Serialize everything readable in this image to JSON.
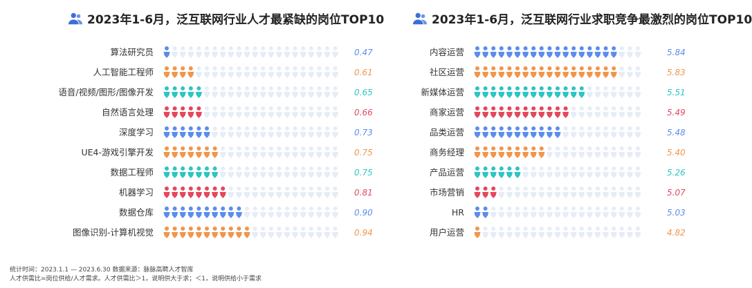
{
  "colors": {
    "blue": "#5b8def",
    "orange": "#f0964c",
    "teal": "#2ec4c4",
    "red": "#e5475d",
    "gray": "#e6edf7"
  },
  "footnote": {
    "line1": "统计时间：2023.1.1 — 2023.6.30  数据来源：脉脉高聘人才智库",
    "line2": "人才供需比=岗位供给/人才需求。人才供需比＞1，说明供大于求；＜1，说明供给小于需求"
  },
  "chart_data": [
    {
      "type": "bar",
      "title": "2023年1-6月，泛互联网行业人才最紧缺的岗位TOP10",
      "categories": [
        "算法研究员",
        "人工智能工程师",
        "语音/视频/图形/图像开发",
        "自然语言处理",
        "深度学习",
        "UE4-游戏引擎开发",
        "数据工程师",
        "机器学习",
        "数据仓库",
        "图像识别-计算机视觉"
      ],
      "values": [
        0.47,
        0.61,
        0.65,
        0.66,
        0.73,
        0.75,
        0.75,
        0.81,
        0.9,
        0.94
      ],
      "labels": [
        "0.47",
        "0.61",
        "0.65",
        "0.66",
        "0.73",
        "0.75",
        "0.75",
        "0.81",
        "0.90",
        "0.94"
      ],
      "icon_counts": [
        1,
        4,
        5,
        5,
        6,
        7,
        7,
        8,
        10,
        11
      ],
      "icons_total": 22,
      "bar_colors": [
        "blue",
        "orange",
        "teal",
        "red",
        "blue",
        "orange",
        "teal",
        "red",
        "blue",
        "orange"
      ]
    },
    {
      "type": "bar",
      "title": "2023年1-6月，泛互联网行业求职竞争最激烈的岗位TOP10",
      "categories": [
        "内容运营",
        "社区运营",
        "新媒体运营",
        "商家运营",
        "品类运营",
        "商务经理",
        "产品运营",
        "市场营销",
        "HR",
        "用户运营"
      ],
      "values": [
        5.84,
        5.83,
        5.51,
        5.49,
        5.48,
        5.4,
        5.26,
        5.07,
        5.03,
        4.82
      ],
      "labels": [
        "5.84",
        "5.83",
        "5.51",
        "5.49",
        "5.48",
        "5.40",
        "5.26",
        "5.07",
        "5.03",
        "4.82"
      ],
      "icon_counts": [
        18,
        18,
        14,
        12,
        11,
        9,
        6,
        3,
        2,
        1
      ],
      "icons_total": 21,
      "bar_colors": [
        "blue",
        "orange",
        "teal",
        "red",
        "blue",
        "orange",
        "teal",
        "red",
        "blue",
        "orange"
      ]
    }
  ]
}
